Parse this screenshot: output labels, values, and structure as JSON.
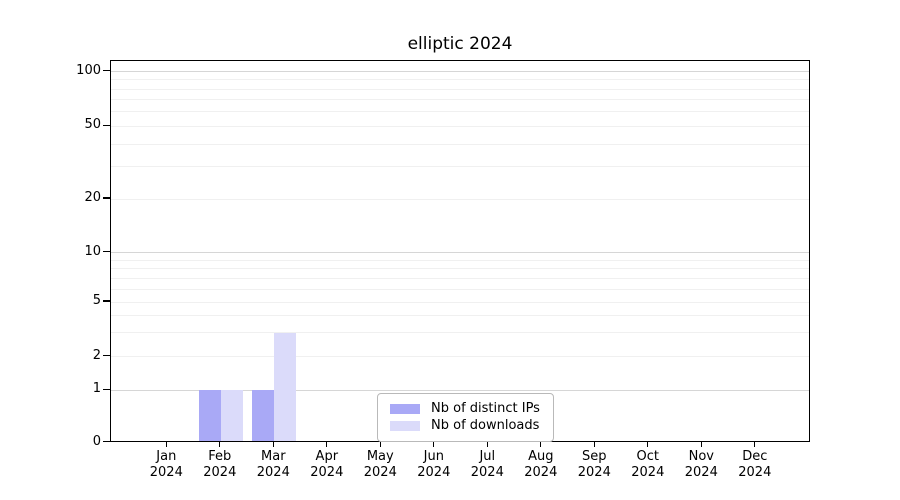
{
  "chart_data": {
    "type": "bar",
    "title": "elliptic 2024",
    "year": "2024",
    "categories": [
      "Jan",
      "Feb",
      "Mar",
      "Apr",
      "May",
      "Jun",
      "Jul",
      "Aug",
      "Sep",
      "Oct",
      "Nov",
      "Dec"
    ],
    "series": [
      {
        "name": "Nb of distinct IPs",
        "color": "#a9a9f6",
        "values": [
          0,
          1,
          1,
          0,
          0,
          0,
          0,
          0,
          0,
          0,
          0,
          0
        ]
      },
      {
        "name": "Nb of downloads",
        "color": "#dbdbfa",
        "values": [
          0,
          1,
          3,
          0,
          0,
          0,
          0,
          0,
          0,
          0,
          0,
          0
        ]
      }
    ],
    "y_ticks": [
      0,
      1,
      2,
      5,
      10,
      20,
      50,
      100
    ],
    "yscale": "symlog",
    "ylim": [
      0,
      115
    ],
    "grid": "horizontal, log minor + major lines",
    "legend_position": "lower center",
    "colors": {
      "bar_distinct_ips": "#a9a9f6",
      "bar_downloads": "#dbdbfa",
      "grid_major": "#d6d6d6",
      "grid_minor": "#f0f0f0",
      "axis": "#000000"
    }
  }
}
